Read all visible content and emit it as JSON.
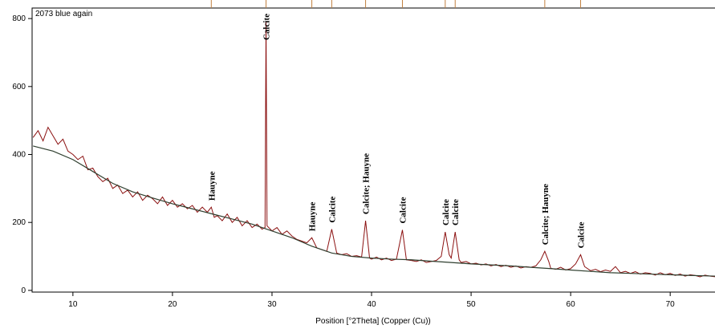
{
  "chart_data": {
    "type": "line",
    "title": "2073 blue again",
    "x_label": "Position [°2Theta] (Copper (Cu))",
    "xlim": [
      5.9,
      74.5
    ],
    "ylim": [
      -5,
      831
    ],
    "xticks": [
      10,
      20,
      30,
      40,
      50,
      60,
      70
    ],
    "yticks": [
      0,
      200,
      400,
      600,
      800
    ],
    "series": [
      {
        "color": "#8b1010",
        "x": [
          6,
          6.5,
          7,
          7.5,
          8,
          8.5,
          9,
          9.5,
          10,
          10.5,
          11,
          11.5,
          12,
          12.5,
          13,
          13.5,
          14,
          14.5,
          15,
          15.5,
          16,
          16.5,
          17,
          17.5,
          18,
          18.5,
          19,
          19.5,
          20,
          20.5,
          21,
          21.5,
          22,
          22.5,
          23,
          23.5,
          23.9,
          24.2,
          24.5,
          25,
          25.5,
          26,
          26.5,
          27,
          27.5,
          28,
          28.5,
          29,
          29.3,
          29.4,
          29.5,
          30,
          30.5,
          31,
          31.5,
          32,
          32.5,
          33,
          33.5,
          34,
          34.5,
          35,
          35.5,
          36,
          36.5,
          37,
          37.5,
          38,
          38.5,
          39,
          39.4,
          39.8,
          40,
          40.5,
          41,
          41.5,
          42,
          42.5,
          43.1,
          43.5,
          44,
          44.5,
          45,
          45.5,
          46,
          46.5,
          47,
          47.4,
          47.8,
          48,
          48.4,
          48.8,
          49,
          49.5,
          50,
          50.5,
          51,
          51.5,
          52,
          52.5,
          53,
          53.5,
          54,
          54.5,
          55,
          55.5,
          56,
          56.5,
          57,
          57.4,
          57.8,
          58,
          58.5,
          59,
          59.5,
          60,
          60.5,
          61,
          61.4,
          62,
          62.5,
          63,
          63.5,
          64,
          64.5,
          65,
          65.5,
          66,
          66.5,
          67,
          67.5,
          68,
          68.5,
          69,
          69.5,
          70,
          70.5,
          71,
          71.5,
          72,
          72.5,
          73,
          73.5,
          74,
          74.5
        ],
        "values": [
          450,
          470,
          440,
          480,
          455,
          430,
          445,
          410,
          400,
          385,
          395,
          355,
          360,
          335,
          320,
          330,
          300,
          310,
          285,
          295,
          275,
          290,
          265,
          280,
          270,
          255,
          275,
          250,
          265,
          245,
          255,
          240,
          250,
          230,
          245,
          230,
          245,
          215,
          220,
          205,
          225,
          200,
          215,
          190,
          205,
          185,
          195,
          180,
          185,
          790,
          190,
          175,
          185,
          165,
          175,
          160,
          150,
          145,
          140,
          155,
          125,
          120,
          115,
          180,
          110,
          105,
          108,
          100,
          102,
          98,
          205,
          95,
          92,
          98,
          90,
          95,
          88,
          92,
          178,
          90,
          88,
          85,
          90,
          82,
          85,
          88,
          100,
          172,
          105,
          95,
          172,
          90,
          82,
          85,
          78,
          80,
          75,
          78,
          72,
          76,
          70,
          74,
          68,
          72,
          66,
          70,
          68,
          72,
          90,
          115,
          85,
          65,
          62,
          68,
          60,
          64,
          78,
          105,
          70,
          58,
          62,
          55,
          60,
          56,
          70,
          52,
          56,
          50,
          55,
          48,
          52,
          50,
          45,
          52,
          46,
          50,
          44,
          48,
          42,
          46,
          44,
          40,
          45,
          42,
          40
        ]
      },
      {
        "color": "#2f3f2f",
        "x": [
          6,
          8,
          10,
          12,
          14,
          16,
          18,
          20,
          22,
          24,
          26,
          28,
          30,
          32,
          34,
          36,
          38,
          40,
          42,
          44,
          46,
          48,
          50,
          52,
          54,
          56,
          58,
          60,
          62,
          64,
          66,
          68,
          70,
          72,
          74.5
        ],
        "values": [
          425,
          410,
          385,
          350,
          315,
          290,
          272,
          255,
          240,
          225,
          210,
          195,
          175,
          155,
          130,
          110,
          100,
          95,
          92,
          90,
          86,
          82,
          78,
          75,
          72,
          68,
          64,
          60,
          56,
          52,
          50,
          48,
          46,
          44,
          42
        ]
      }
    ],
    "annotations": [
      {
        "text": "Hauyne",
        "x": 23.9
      },
      {
        "text": "Calcite",
        "x": 29.4
      },
      {
        "text": "Hauyne",
        "x": 34.0
      },
      {
        "text": "Calcite",
        "x": 36.0
      },
      {
        "text": "Calcite; Hauyne",
        "x": 39.4
      },
      {
        "text": "Calcite",
        "x": 43.1
      },
      {
        "text": "Calcite",
        "x": 47.4
      },
      {
        "text": "Calcite",
        "x": 48.4
      },
      {
        "text": "Calcite; Hauyne",
        "x": 57.4
      },
      {
        "text": "Calcite",
        "x": 61.0
      }
    ]
  }
}
